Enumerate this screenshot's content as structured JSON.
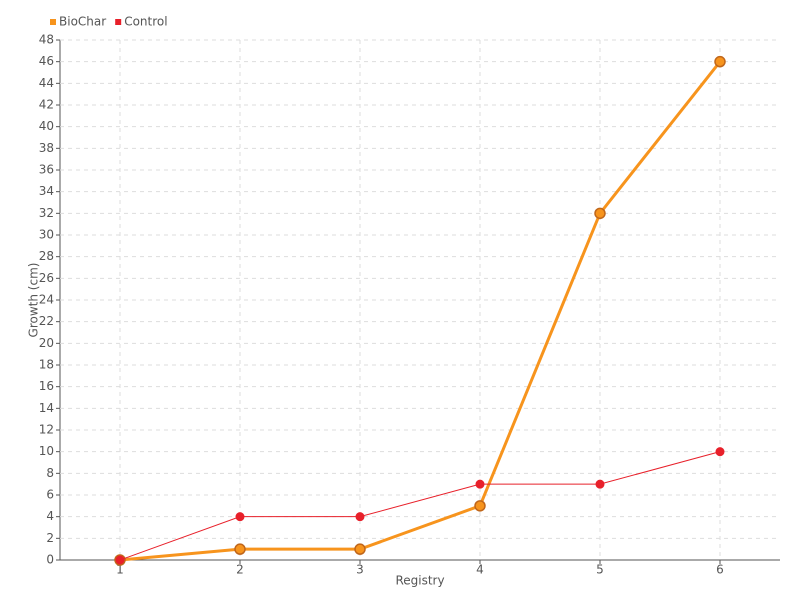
{
  "chart_data": {
    "type": "line",
    "x_label": "Registry",
    "y_label": "Growth (cm)",
    "x": [
      1,
      2,
      3,
      4,
      5,
      6
    ],
    "xlim": [
      0.5,
      6.5
    ],
    "xticks": [
      1,
      2,
      3,
      4,
      5,
      6
    ],
    "ylim": [
      0,
      48
    ],
    "yticks": [
      0,
      2,
      4,
      6,
      8,
      10,
      12,
      14,
      16,
      18,
      20,
      22,
      24,
      26,
      28,
      30,
      32,
      34,
      36,
      38,
      40,
      42,
      44,
      46,
      48
    ],
    "grid": true,
    "legend": "top-left",
    "series": [
      {
        "name": "BioChar",
        "color": "#f7941d",
        "values": [
          0,
          1,
          1,
          5,
          32,
          46
        ]
      },
      {
        "name": "Control",
        "color": "#e8202a",
        "values": [
          0,
          4,
          4,
          7,
          7,
          10
        ]
      }
    ]
  }
}
